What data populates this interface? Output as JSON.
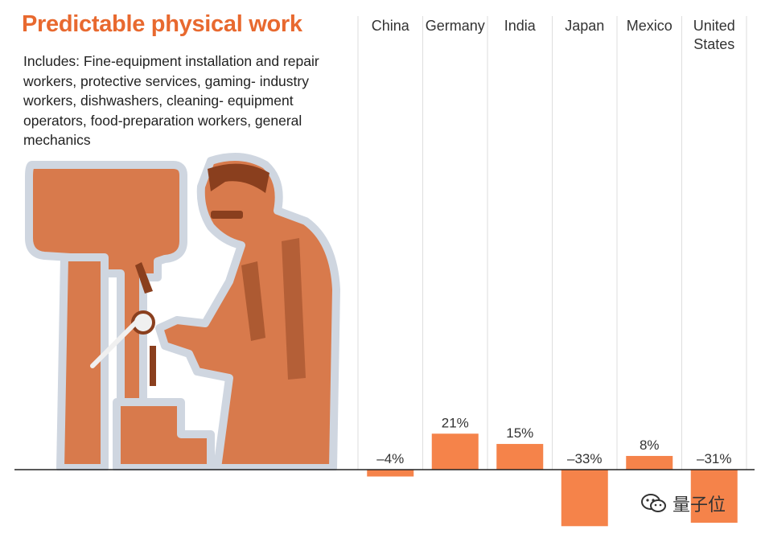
{
  "title": "Predictable physical work",
  "description": "Includes: Fine-equipment installation and repair workers, protective services, gaming- industry workers, dishwashers, cleaning- equipment operators, food-preparation workers, general mechanics",
  "watermark": "量子位",
  "colors": {
    "accent": "#e8692f",
    "bar": "#f5834a",
    "illustration": "#d87a4c",
    "illustration_dark": "#8a3f1e",
    "illustration_halo": "#cfd6e0"
  },
  "chart_data": {
    "type": "bar",
    "categories": [
      "China",
      "Germany",
      "India",
      "Japan",
      "Mexico",
      "United States"
    ],
    "values": [
      -4,
      21,
      15,
      -33,
      8,
      -31
    ],
    "value_labels": [
      "–4%",
      "21%",
      "15%",
      "–33%",
      "8%",
      "–31%"
    ],
    "ylim": [
      -35,
      20
    ],
    "grid": "vertical separators",
    "legend": "none"
  }
}
